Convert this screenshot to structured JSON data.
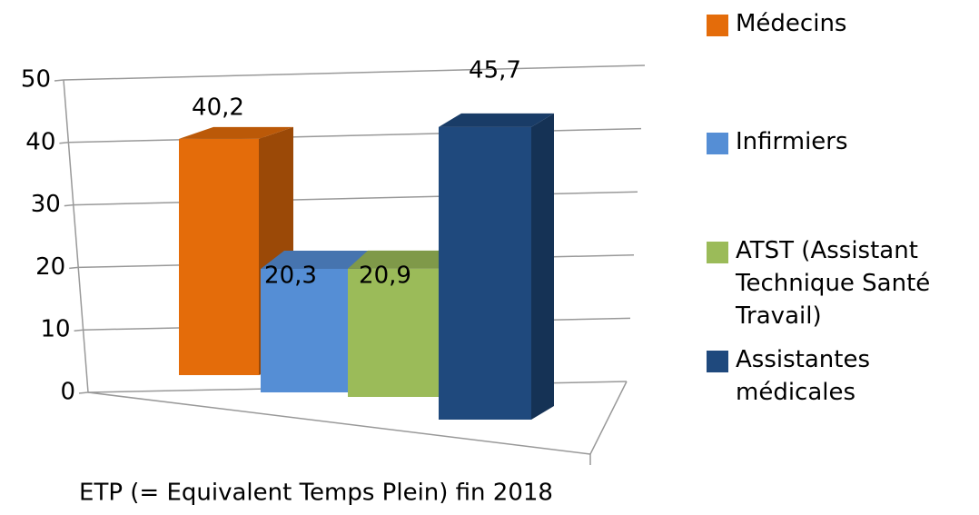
{
  "chart_data": {
    "type": "bar3d",
    "categories": [
      "ETP (= Equivalent Temps Plein) fin 2018"
    ],
    "series": [
      {
        "name": "Médecins",
        "color": "#e46c0a",
        "values": [
          40.2
        ],
        "value_labels": [
          "40,2"
        ]
      },
      {
        "name": "Infirmiers",
        "color": "#558ed5",
        "values": [
          20.3
        ],
        "value_labels": [
          "20,3"
        ]
      },
      {
        "name": "ATST (Assistant Technique Santé Travail)",
        "color": "#9bbb59",
        "values": [
          20.9
        ],
        "value_labels": [
          "20,9"
        ]
      },
      {
        "name": "Assistantes médicales",
        "color": "#1f497d",
        "values": [
          45.7
        ],
        "value_labels": [
          "45,7"
        ]
      }
    ],
    "ylim": [
      0,
      50
    ],
    "yticks": [
      0,
      10,
      20,
      30,
      40,
      50
    ],
    "grid": true,
    "legend": "right"
  }
}
